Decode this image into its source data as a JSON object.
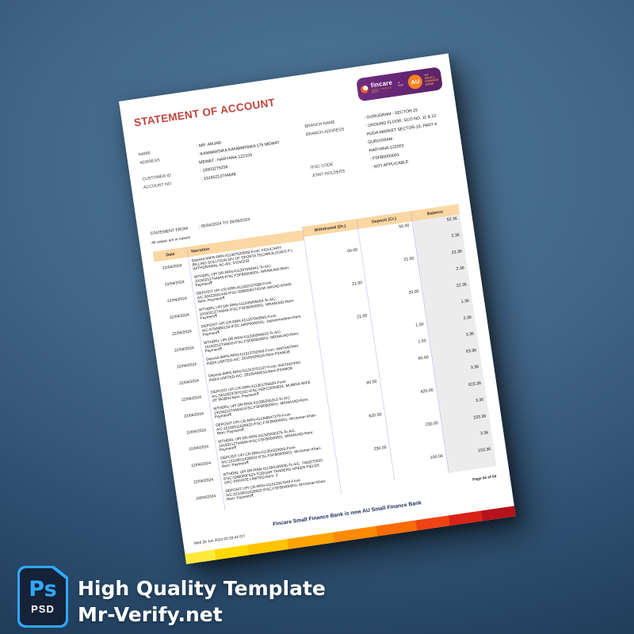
{
  "colors": {
    "background_blue": "#3c5f7f",
    "brand_purple": "#6f2d80",
    "brand_orange": "#f58220",
    "title_red": "#bf4440",
    "header_peach": "#fbd7a3",
    "balance_column_gray": "#ececec",
    "column_line_purple": "#b3b1de",
    "footer_navy": "#1d2a55",
    "footer_bar": [
      "#ffe93d",
      "#ffd800",
      "#ffc400",
      "#ffa300",
      "#ff8a00",
      "#f96b05",
      "#ef4313",
      "#d92318",
      "#b5121b"
    ],
    "psd_blue": "#31a8ff"
  },
  "watermark": {
    "badge_ps": "Ps",
    "badge_psd": "PSD",
    "line1": "High Quality Template",
    "line2": "Mr-Verify.net"
  },
  "document": {
    "logo": {
      "fincare": "fincare",
      "fincare_tagline": "Small Finance Bank",
      "is_now": "is now",
      "au_initials": "AU",
      "au_lines": [
        "AU SMALL",
        "FINANCE",
        "BANK"
      ]
    },
    "title": "STATEMENT OF ACCOUNT",
    "info_left": [
      {
        "label": "NAME",
        "lines": [
          "MR. AMJAD"
        ]
      },
      {
        "label": "ADDRESS",
        "lines": [
          "KANWARSIKA KANWARSIKA 175  MEWAT",
          "MEWAT , HARYANA-122103"
        ]
      },
      {
        "label": "CUSTOMER ID",
        "lines": [
          "15003275256"
        ]
      },
      {
        "label": "ACCOUNT NO.",
        "lines": [
          "19150212744648"
        ]
      }
    ],
    "info_right": [
      {
        "label": "BRANCH NAME",
        "lines": [
          "GURUGRAM - SECTOR 15"
        ]
      },
      {
        "label": "BRANCH ADDRESS",
        "lines": [
          "GROUND FLOOR, SCO NO. 11 & 12",
          "HUDA MARKET SECTOR-15, PART-II",
          "GURUGRAM",
          "HARYANA-122003"
        ]
      },
      {
        "label": "IFSC CODE",
        "lines": [
          "FSFB0000001"
        ]
      },
      {
        "label": "JOINT HOLDERS",
        "lines": [
          "NOT APPLICABLE"
        ]
      }
    ],
    "statement_from_label": "STATEMENT FROM",
    "statement_period": "05/04/2024 TO 26/06/2024",
    "values_note": "All values are in rupees",
    "table": {
      "headers": {
        "date": "Date",
        "narration": "Narration",
        "withdrawal": "Withdrawal (Dr.)",
        "deposit": "Deposit (Cr.)",
        "balance": "Balance"
      },
      "rows": [
        {
          "date": "22/04/2024",
          "narration": "Deposit-IMPS-RRN:411307620828-From: FIDUCIARY BILLING SOLUTION DIV OF SPORTA TECHNOLOGIES P L WITHDRAWAL AC-A/c: 04156233",
          "withdrawal": "",
          "deposit": "50.00",
          "balance": "52.36"
        },
        {
          "date": "22/04/2024",
          "narration": "WTHDRL UPI DR-RRN:411337094341-To A/C: 19150212744649-IFSC:FSFB0000001- MRAMJAD-Rem: Payment₹",
          "withdrawal": "50.00",
          "deposit": "",
          "balance": "2.36"
        },
        {
          "date": "22/04/2024",
          "narration": "DEPOSIT UPI CR-RRN:411332157688-From A/C:50422091443-IFSC:IDIB000G743-Mr AMJAD KHAN-Rem: Payment₹",
          "withdrawal": "",
          "deposit": "21.00",
          "balance": "23.36"
        },
        {
          "date": "22/04/2024",
          "narration": "WTHDRL UPI DR-RRN:411335095654-To A/C: 19150212744649-IFSC:FSFB0000001- MRAMJAD-Rem: Payment₹",
          "withdrawal": "21.00",
          "deposit": "",
          "balance": "2.36"
        },
        {
          "date": "22/04/2024",
          "narration": "DEPOSIT UPI CR-RRN:411337943955-From A/C:9750080133-IFSC:AIRP0000531- Jasseemudeen-Rem: Payment₹",
          "withdrawal": "",
          "deposit": "20.00",
          "balance": "22.36"
        },
        {
          "date": "22/04/2024",
          "narration": "WTHDRL UPI DR-RRN:411339394623-To A/C: 19150212744649-IFSC:FSFB0000001- MRAMJAD-Rem: Payment₹",
          "withdrawal": "21.00",
          "deposit": "",
          "balance": "1.36"
        },
        {
          "date": "22/04/2024",
          "narration": "Deposit-IMPS-RRN:411313702949-From: INSTANTPAY INDIA LIMITED-A/C: 20100409516-Rem:P2AMO8",
          "withdrawal": "",
          "deposit": "1.00",
          "balance": "2.36"
        },
        {
          "date": "22/04/2024",
          "narration": "Deposit-IMPS-RRN:411313701137-From: INSTANTPAY INDIA LIMITED-A/C: 20100409516-Rem:P2AMO8",
          "withdrawal": "",
          "deposit": "1.00",
          "balance": "3.36"
        },
        {
          "date": "22/04/2024",
          "narration": "DEPOSIT UPI CR-RRN:411361765629-From A/C:50100237876192-IFSC:HDFC0003822- MUBINA WIFE OF MOBIN-Rem: Payment₹",
          "withdrawal": "",
          "deposit": "60.00",
          "balance": "63.36"
        },
        {
          "date": "22/04/2024",
          "narration": "WTHDRL UPI DR-RRN:411385295313-To A/C: 19150212744649-IFSC:FSFB0000001- MRAMJAD-Rem: Payment₹",
          "withdrawal": "60.00",
          "deposit": "",
          "balance": "3.36"
        },
        {
          "date": "22/04/2024",
          "narration": "DEPOSIT UPI CR-RRN:411358047379-From A/C:22100011628922-IFSC:FSFB0000001- MrUsman Khan-Rem: Payment₹",
          "withdrawal": "",
          "deposit": "620.00",
          "balance": "623.36"
        },
        {
          "date": "22/04/2024",
          "narration": "WTHDRL UPI DR-RRN:411325036375-To A/C: 19150212744649-IFSC:FSFB0000001- MRAMJAD-Rem: Payment₹",
          "withdrawal": "620.00",
          "deposit": "",
          "balance": "3.36"
        },
        {
          "date": "22/04/2024",
          "narration": "DEPOSIT UPI CR-RRN:411350323653-From A/C:22100011628922-IFSC:FSFB0000001- MrUsman Khan-Rem: Payment₹",
          "withdrawal": "",
          "deposit": "230.00",
          "balance": "233.36"
        },
        {
          "date": "22/04/2024",
          "narration": "WTHDRL UPI DR-RRN:411384169936-To A/C: 7463270932-IFSC:IDIB000F523-TODGAR TRADERS GREEN FIELDS OPC PRIVATE LIMITED-Rem: 2",
          "withdrawal": "230.00",
          "deposit": "",
          "balance": "3.36"
        },
        {
          "date": "24/04/2024",
          "narration": "DEPOSIT UPI CR-RRN:411512957649-From A/C:22100011628922-IFSC:FSFB0000001- MrUsman Khan-Rem: Payment₹",
          "withdrawal": "",
          "deposit": "100.00",
          "balance": "103.36"
        }
      ]
    },
    "footer": {
      "page_number": "Page 04 of 04",
      "rebrand_line": "Fincare Small Finance Bank is now AU Small Finance Bank",
      "timestamp": "Wed 26 Jun 2024  02:33:44 IST"
    }
  }
}
